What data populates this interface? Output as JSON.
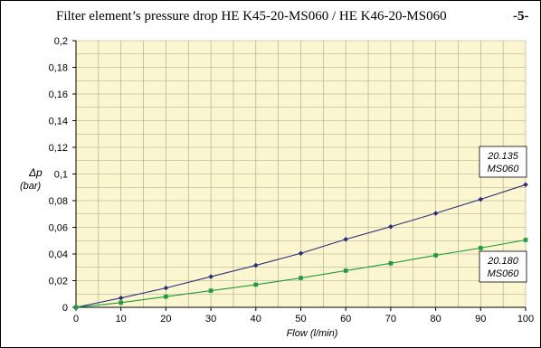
{
  "header": {
    "title": "Filter element’s pressure drop HE K45-20-MS060 / HE K46-20-MS060",
    "page_number": "-5-"
  },
  "colors": {
    "plot_background": "#fbf6cf",
    "grid": "#a8a48e",
    "series_blue": "#2b2f7a",
    "series_green": "#1e9a3a"
  },
  "chart_data": {
    "type": "line",
    "title": "Filter element’s pressure drop HE K45-20-MS060 / HE K46-20-MS060",
    "xlabel": "Flow (l/min)",
    "ylabel_symbol": "Δp",
    "ylabel_unit": "(bar)",
    "xlim": [
      0,
      100
    ],
    "ylim": [
      0,
      0.2
    ],
    "xticks": [
      "0",
      "10",
      "20",
      "30",
      "40",
      "50",
      "60",
      "70",
      "80",
      "90",
      "100"
    ],
    "yticks": [
      "0",
      "0,02",
      "0,04",
      "0,06",
      "0,08",
      "0,1",
      "0,12",
      "0,14",
      "0,16",
      "0,18",
      "0,2"
    ],
    "grid": true,
    "x": [
      0,
      10,
      20,
      30,
      40,
      50,
      60,
      70,
      80,
      90,
      100
    ],
    "series": [
      {
        "label_line1": "20.135",
        "label_line2": "MS060",
        "color": "#2b2f7a",
        "marker": "diamond",
        "values": [
          0,
          0.007,
          0.0145,
          0.023,
          0.0315,
          0.0405,
          0.051,
          0.0605,
          0.0705,
          0.081,
          0.092
        ]
      },
      {
        "label_line1": "20.180",
        "label_line2": "MS060",
        "color": "#1e9a3a",
        "marker": "square",
        "values": [
          0,
          0.0035,
          0.008,
          0.0125,
          0.017,
          0.022,
          0.0275,
          0.033,
          0.039,
          0.0445,
          0.0505
        ]
      }
    ]
  }
}
